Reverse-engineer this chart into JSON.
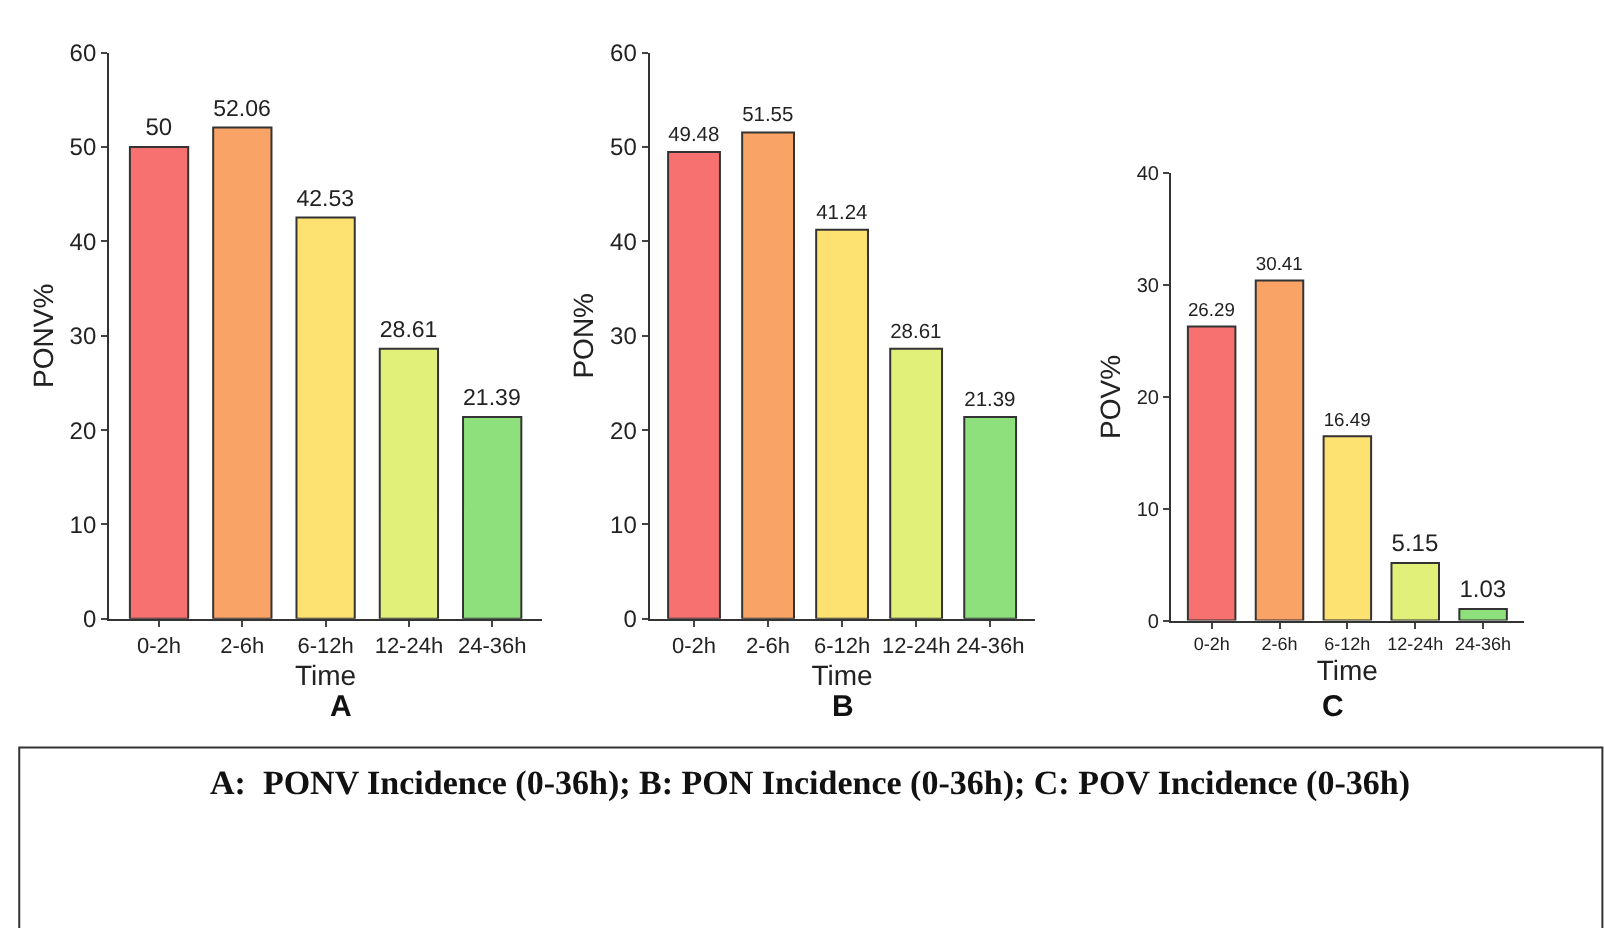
{
  "chart_data": [
    {
      "type": "bar",
      "title": "A",
      "xlabel": "Time",
      "ylabel": "PONV%",
      "categories": [
        "0-2h",
        "2-6h",
        "6-12h",
        "12-24h",
        "24-36h"
      ],
      "values": [
        50,
        52.06,
        42.53,
        28.61,
        21.39
      ],
      "colors": [
        "#f87171",
        "#f9a466",
        "#fde272",
        "#e1f078",
        "#8ee07c"
      ],
      "ylim": [
        0,
        60
      ],
      "yticks": [
        0,
        10,
        20,
        30,
        40,
        50,
        60
      ],
      "data_labels": true
    },
    {
      "type": "bar",
      "title": "B",
      "xlabel": "Time",
      "ylabel": "PON%",
      "categories": [
        "0-2h",
        "2-6h",
        "6-12h",
        "12-24h",
        "24-36h"
      ],
      "values": [
        49.48,
        51.55,
        41.24,
        28.61,
        21.39
      ],
      "colors": [
        "#f87171",
        "#f9a466",
        "#fde272",
        "#e1f078",
        "#8ee07c"
      ],
      "ylim": [
        0,
        60
      ],
      "yticks": [
        0,
        10,
        20,
        30,
        40,
        50,
        60
      ],
      "data_labels": true
    },
    {
      "type": "bar",
      "title": "C",
      "xlabel": "Time",
      "ylabel": "POV%",
      "categories": [
        "0-2h",
        "2-6h",
        "6-12h",
        "12-24h",
        "24-36h"
      ],
      "values": [
        26.29,
        30.41,
        16.49,
        5.15,
        1.03
      ],
      "colors": [
        "#f87171",
        "#f9a466",
        "#fde272",
        "#e1f078",
        "#8ee07c"
      ],
      "ylim": [
        0,
        40
      ],
      "yticks": [
        0,
        10,
        20,
        30,
        40
      ],
      "data_labels": true
    },
    {
      "type": "other",
      "annotations": [
        "A:  PONV Incidence (0-36h); B: PON Incidence (0-36h); C: POV Incidence (0-36h)"
      ]
    }
  ]
}
